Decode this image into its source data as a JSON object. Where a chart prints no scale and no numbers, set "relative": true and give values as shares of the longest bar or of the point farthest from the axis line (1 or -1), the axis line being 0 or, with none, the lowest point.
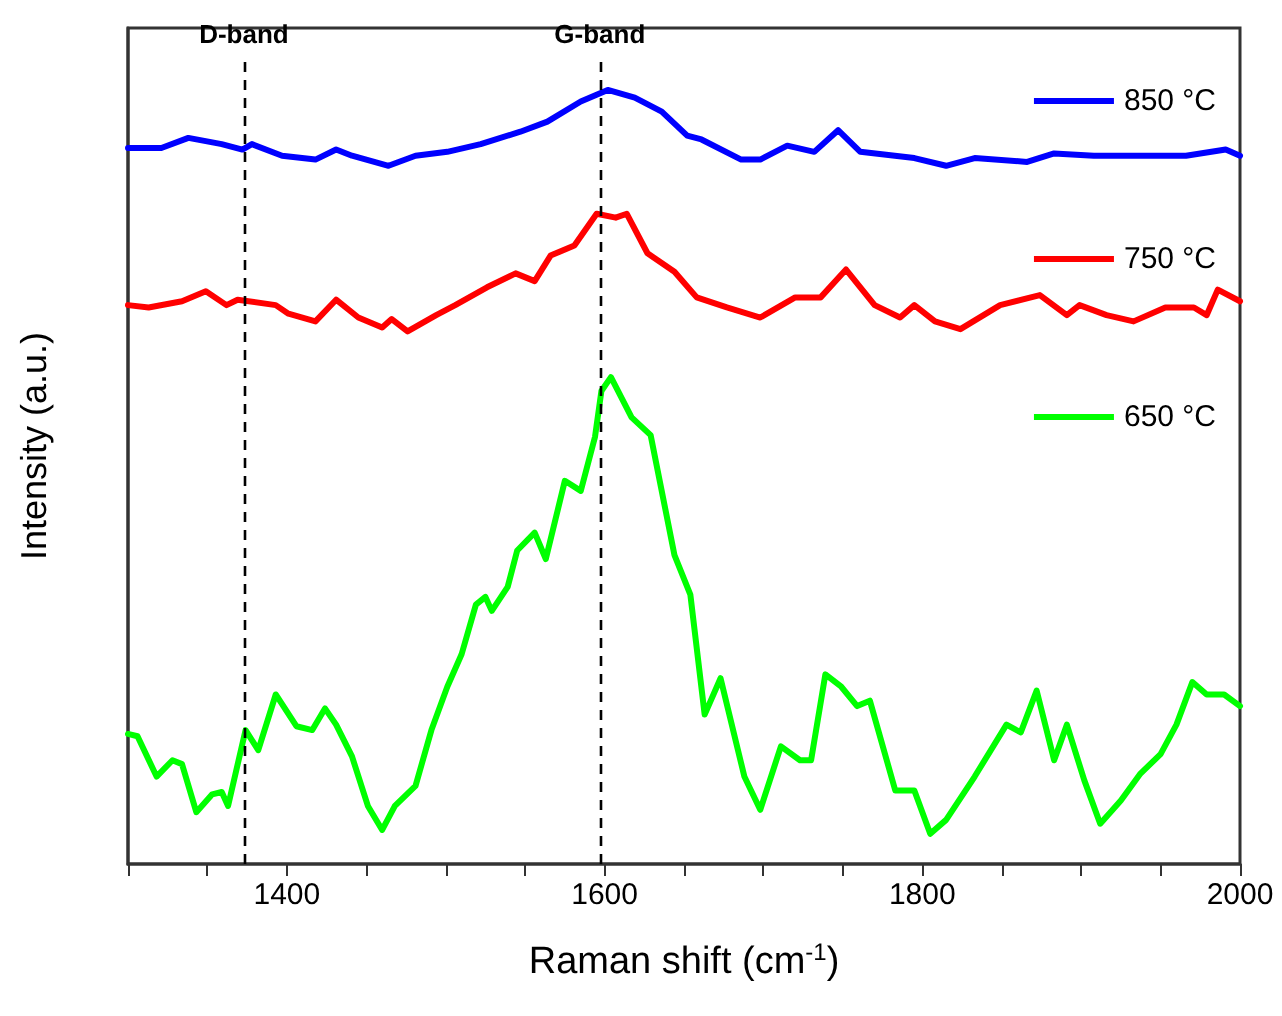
{
  "chart_data": {
    "type": "line",
    "xlabel": "Raman shift (cm$^{-1}$)",
    "ylabel": "Intensity (a.u.)",
    "relative": true,
    "xlim": [
      1300,
      2000
    ],
    "xticks": [
      {
        "value": 1300,
        "label": null
      },
      {
        "value": 1350,
        "label": null
      },
      1400,
      {
        "value": 1450,
        "label": null
      },
      {
        "value": 1500,
        "label": null
      },
      {
        "value": 1550,
        "label": null
      },
      1600,
      {
        "value": 1650,
        "label": null
      },
      {
        "value": 1700,
        "label": null
      },
      {
        "value": 1750,
        "label": null
      },
      1800,
      {
        "value": 1850,
        "label": null
      },
      {
        "value": 1900,
        "label": null
      },
      {
        "value": 1950,
        "label": null
      },
      2000
    ],
    "tick_labels": "x",
    "grid": false,
    "legend": "top right",
    "marker": "none",
    "line_style": "solid",
    "ref_lines": [
      {
        "axis": "x",
        "value": 1373,
        "label": "D-band",
        "color": "#000000",
        "line_style": "dashed"
      },
      {
        "axis": "x",
        "value": 1597,
        "label": "G-band",
        "color": "#000000",
        "line_style": "dashed"
      }
    ],
    "series": [
      {
        "name": "850 °C",
        "color": "#0000ff",
        "x": [
          1300,
          1321,
          1338,
          1359,
          1372,
          1378,
          1397,
          1418,
          1431,
          1441,
          1464,
          1481,
          1501,
          1522,
          1547,
          1564,
          1585,
          1602,
          1619,
          1636,
          1652,
          1661,
          1686,
          1698,
          1715,
          1732,
          1747,
          1761,
          1795,
          1815,
          1833,
          1866,
          1883,
          1908,
          1941,
          1966,
          1991,
          2000
        ],
        "values": [
          0.925,
          0.925,
          0.938,
          0.93,
          0.923,
          0.93,
          0.915,
          0.91,
          0.923,
          0.915,
          0.902,
          0.915,
          0.92,
          0.93,
          0.946,
          0.959,
          0.985,
          1,
          0.99,
          0.972,
          0.941,
          0.936,
          0.91,
          0.91,
          0.928,
          0.92,
          0.948,
          0.92,
          0.912,
          0.902,
          0.912,
          0.907,
          0.918,
          0.915,
          0.915,
          0.915,
          0.923,
          0.915
        ]
      },
      {
        "name": "750 °C",
        "color": "#ff0000",
        "x": [
          1300,
          1313,
          1334,
          1349,
          1362,
          1369,
          1393,
          1401,
          1418,
          1431,
          1445,
          1460,
          1466,
          1476,
          1494,
          1506,
          1526,
          1544,
          1556,
          1566,
          1581,
          1595,
          1607,
          1614,
          1627,
          1644,
          1658,
          1677,
          1698,
          1720,
          1736,
          1752,
          1770,
          1786,
          1795,
          1808,
          1824,
          1849,
          1874,
          1891,
          1899,
          1916,
          1933,
          1953,
          1971,
          1979,
          1986,
          2000
        ],
        "values": [
          0.722,
          0.719,
          0.727,
          0.74,
          0.722,
          0.729,
          0.722,
          0.711,
          0.701,
          0.729,
          0.706,
          0.693,
          0.704,
          0.688,
          0.709,
          0.722,
          0.745,
          0.763,
          0.753,
          0.786,
          0.799,
          0.84,
          0.835,
          0.84,
          0.789,
          0.765,
          0.732,
          0.719,
          0.706,
          0.732,
          0.732,
          0.768,
          0.722,
          0.706,
          0.722,
          0.701,
          0.691,
          0.722,
          0.735,
          0.709,
          0.722,
          0.709,
          0.701,
          0.719,
          0.719,
          0.709,
          0.742,
          0.727
        ]
      },
      {
        "name": "650 °C",
        "color": "#00ff00",
        "x": [
          1300,
          1306,
          1318,
          1328,
          1334,
          1343,
          1353,
          1359,
          1363,
          1374,
          1382,
          1393,
          1406,
          1416,
          1424,
          1431,
          1441,
          1451,
          1460,
          1468,
          1481,
          1491,
          1501,
          1510,
          1519,
          1525,
          1529,
          1539,
          1545,
          1556,
          1563,
          1575,
          1585,
          1594,
          1598,
          1604,
          1617,
          1629,
          1644,
          1654,
          1663,
          1673,
          1688,
          1698,
          1711,
          1723,
          1730,
          1739,
          1749,
          1759,
          1767,
          1783,
          1795,
          1805,
          1815,
          1833,
          1853,
          1862,
          1872,
          1883,
          1891,
          1902,
          1912,
          1925,
          1937,
          1950,
          1960,
          1970,
          1979,
          1990,
          2000
        ],
        "values": [
          0.168,
          0.165,
          0.113,
          0.134,
          0.129,
          0.067,
          0.09,
          0.093,
          0.075,
          0.173,
          0.147,
          0.219,
          0.178,
          0.173,
          0.201,
          0.18,
          0.139,
          0.075,
          0.044,
          0.075,
          0.101,
          0.173,
          0.229,
          0.271,
          0.335,
          0.345,
          0.327,
          0.358,
          0.405,
          0.428,
          0.394,
          0.495,
          0.482,
          0.552,
          0.611,
          0.629,
          0.577,
          0.554,
          0.399,
          0.348,
          0.193,
          0.24,
          0.113,
          0.07,
          0.152,
          0.134,
          0.134,
          0.245,
          0.229,
          0.204,
          0.211,
          0.095,
          0.095,
          0.039,
          0.057,
          0.113,
          0.18,
          0.17,
          0.224,
          0.134,
          0.18,
          0.108,
          0.052,
          0.082,
          0.116,
          0.142,
          0.18,
          0.235,
          0.219,
          0.219,
          0.204
        ]
      }
    ]
  }
}
